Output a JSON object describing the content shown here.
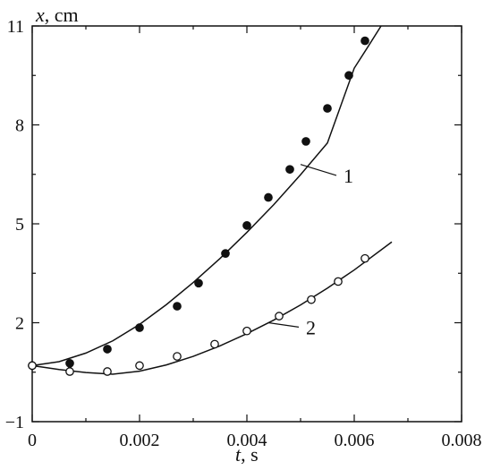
{
  "chart_data": {
    "type": "scatter",
    "title": "",
    "xlabel": {
      "symbol": "t",
      "unit": ", s"
    },
    "ylabel": {
      "symbol": "x",
      "unit": ", cm"
    },
    "xlim": [
      0,
      0.008
    ],
    "ylim": [
      -1,
      11
    ],
    "xticks": [
      0,
      0.002,
      0.004,
      0.006,
      0.008
    ],
    "xtick_labels": [
      "0",
      "0.002",
      "0.004",
      "0.006",
      "0.008"
    ],
    "yticks": [
      -1,
      2,
      5,
      8,
      11
    ],
    "ytick_labels": [
      "−1",
      "2",
      "5",
      "8",
      "11"
    ],
    "grid": false,
    "colors": {
      "ink": "#111111",
      "background": "#ffffff",
      "open_marker_fill": "#ffffff"
    },
    "series": [
      {
        "label": "1",
        "marker": "filled-circle",
        "points": [
          {
            "x": 0.0,
            "y": 0.7
          },
          {
            "x": 0.0007,
            "y": 0.77
          },
          {
            "x": 0.0014,
            "y": 1.2
          },
          {
            "x": 0.002,
            "y": 1.85
          },
          {
            "x": 0.0027,
            "y": 2.5
          },
          {
            "x": 0.0031,
            "y": 3.2
          },
          {
            "x": 0.0036,
            "y": 4.1
          },
          {
            "x": 0.004,
            "y": 4.95
          },
          {
            "x": 0.0044,
            "y": 5.8
          },
          {
            "x": 0.0048,
            "y": 6.65
          },
          {
            "x": 0.0051,
            "y": 7.5
          },
          {
            "x": 0.0055,
            "y": 8.5
          },
          {
            "x": 0.0059,
            "y": 9.5
          },
          {
            "x": 0.0062,
            "y": 10.55
          }
        ],
        "fit": [
          {
            "x": 0.0,
            "y": 0.7
          },
          {
            "x": 0.0005,
            "y": 0.82
          },
          {
            "x": 0.001,
            "y": 1.08
          },
          {
            "x": 0.0015,
            "y": 1.45
          },
          {
            "x": 0.002,
            "y": 1.95
          },
          {
            "x": 0.0025,
            "y": 2.55
          },
          {
            "x": 0.003,
            "y": 3.22
          },
          {
            "x": 0.0035,
            "y": 3.95
          },
          {
            "x": 0.004,
            "y": 4.74
          },
          {
            "x": 0.0045,
            "y": 5.58
          },
          {
            "x": 0.005,
            "y": 6.49
          },
          {
            "x": 0.0055,
            "y": 7.45
          },
          {
            "x": 0.006,
            "y": 9.72
          },
          {
            "x": 0.00626,
            "y": 10.38
          },
          {
            "x": 0.0065,
            "y": 11.0
          }
        ],
        "label_anchor": {
          "x": 0.005,
          "y": 6.8
        },
        "label_position": {
          "x": 0.0058,
          "y": 6.25
        }
      },
      {
        "label": "2",
        "marker": "open-circle",
        "points": [
          {
            "x": 0.0,
            "y": 0.7
          },
          {
            "x": 0.0007,
            "y": 0.52
          },
          {
            "x": 0.0014,
            "y": 0.52
          },
          {
            "x": 0.002,
            "y": 0.7
          },
          {
            "x": 0.0027,
            "y": 0.98
          },
          {
            "x": 0.0034,
            "y": 1.35
          },
          {
            "x": 0.004,
            "y": 1.75
          },
          {
            "x": 0.0046,
            "y": 2.2
          },
          {
            "x": 0.0052,
            "y": 2.7
          },
          {
            "x": 0.0057,
            "y": 3.25
          },
          {
            "x": 0.0062,
            "y": 3.95
          }
        ],
        "fit": [
          {
            "x": 0.0,
            "y": 0.7
          },
          {
            "x": 0.0005,
            "y": 0.58
          },
          {
            "x": 0.001,
            "y": 0.49
          },
          {
            "x": 0.0015,
            "y": 0.44
          },
          {
            "x": 0.002,
            "y": 0.53
          },
          {
            "x": 0.0025,
            "y": 0.72
          },
          {
            "x": 0.003,
            "y": 0.98
          },
          {
            "x": 0.0035,
            "y": 1.3
          },
          {
            "x": 0.004,
            "y": 1.67
          },
          {
            "x": 0.0045,
            "y": 2.08
          },
          {
            "x": 0.005,
            "y": 2.54
          },
          {
            "x": 0.0055,
            "y": 3.05
          },
          {
            "x": 0.006,
            "y": 3.6
          },
          {
            "x": 0.0067,
            "y": 4.45
          }
        ],
        "label_anchor": {
          "x": 0.0044,
          "y": 2.0
        },
        "label_position": {
          "x": 0.0051,
          "y": 1.65
        }
      }
    ]
  }
}
